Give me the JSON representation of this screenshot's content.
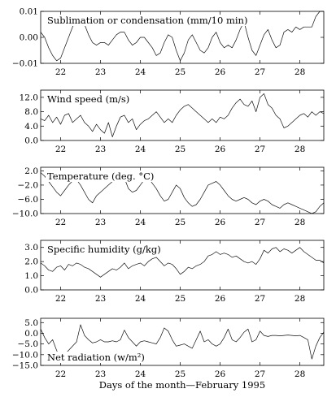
{
  "xlabel": "Days of the month—February 1995",
  "chart_data": [
    {
      "type": "line",
      "title": "Sublimation or condensation (mm/10 min)",
      "xlim": [
        21.5,
        28.6
      ],
      "ylim": [
        -0.01,
        0.01
      ],
      "xticks": [
        "22",
        "23",
        "24",
        "25",
        "26",
        "27",
        "28"
      ],
      "yticks": [
        {
          "v": 0.01,
          "label": "0.01"
        },
        {
          "v": 0.0,
          "label": "0.00"
        },
        {
          "v": -0.01,
          "label": "−0.01"
        }
      ],
      "x": [
        21.5,
        21.6,
        21.7,
        21.8,
        21.9,
        22.0,
        22.1,
        22.2,
        22.3,
        22.4,
        22.5,
        22.6,
        22.7,
        22.8,
        22.9,
        23.0,
        23.1,
        23.2,
        23.3,
        23.4,
        23.5,
        23.6,
        23.7,
        23.8,
        23.9,
        24.0,
        24.1,
        24.2,
        24.3,
        24.4,
        24.5,
        24.6,
        24.7,
        24.8,
        24.9,
        25.0,
        25.1,
        25.2,
        25.3,
        25.4,
        25.5,
        25.6,
        25.7,
        25.8,
        25.9,
        26.0,
        26.1,
        26.2,
        26.3,
        26.4,
        26.5,
        26.6,
        26.7,
        26.8,
        26.9,
        27.0,
        27.1,
        27.2,
        27.3,
        27.4,
        27.5,
        27.6,
        27.7,
        27.8,
        27.9,
        28.0,
        28.1,
        28.2,
        28.3,
        28.4,
        28.5,
        28.6
      ],
      "values": [
        0.002,
        0.0,
        -0.004,
        -0.007,
        -0.009,
        -0.008,
        -0.004,
        0.0,
        0.004,
        0.007,
        0.008,
        0.005,
        0.001,
        -0.002,
        -0.003,
        -0.002,
        -0.002,
        -0.003,
        -0.001,
        0.001,
        0.002,
        0.002,
        -0.001,
        -0.003,
        -0.002,
        0.0,
        0.0,
        -0.002,
        -0.004,
        -0.007,
        -0.006,
        -0.002,
        0.001,
        0.0,
        -0.005,
        -0.009,
        -0.006,
        -0.001,
        0.001,
        -0.002,
        -0.005,
        -0.006,
        -0.004,
        0.0,
        0.002,
        -0.002,
        -0.004,
        -0.003,
        -0.004,
        -0.001,
        0.003,
        0.006,
        0.0,
        -0.005,
        -0.007,
        -0.003,
        0.001,
        0.003,
        -0.001,
        -0.004,
        -0.003,
        0.002,
        0.003,
        0.002,
        0.004,
        0.003,
        0.004,
        0.004,
        0.004,
        0.008,
        0.01,
        0.01
      ]
    },
    {
      "type": "line",
      "title": "Wind speed (m/s)",
      "xlim": [
        21.5,
        28.6
      ],
      "ylim": [
        0.0,
        14.0
      ],
      "xticks": [
        "22",
        "23",
        "24",
        "25",
        "26",
        "27",
        "28"
      ],
      "yticks": [
        {
          "v": 12.0,
          "label": "12.0"
        },
        {
          "v": 8.0,
          "label": "8.0"
        },
        {
          "v": 4.0,
          "label": "4.0"
        },
        {
          "v": 0.0,
          "label": "0.0"
        }
      ],
      "x": [
        21.5,
        21.6,
        21.7,
        21.8,
        21.9,
        22.0,
        22.1,
        22.2,
        22.3,
        22.4,
        22.5,
        22.6,
        22.7,
        22.8,
        22.9,
        23.0,
        23.1,
        23.2,
        23.3,
        23.4,
        23.5,
        23.6,
        23.7,
        23.8,
        23.9,
        24.0,
        24.1,
        24.2,
        24.3,
        24.4,
        24.5,
        24.6,
        24.7,
        24.8,
        24.9,
        25.0,
        25.1,
        25.2,
        25.3,
        25.4,
        25.5,
        25.6,
        25.7,
        25.8,
        25.9,
        26.0,
        26.1,
        26.2,
        26.3,
        26.4,
        26.5,
        26.6,
        26.7,
        26.8,
        26.9,
        27.0,
        27.1,
        27.2,
        27.3,
        27.4,
        27.5,
        27.6,
        27.7,
        27.8,
        27.9,
        28.0,
        28.1,
        28.2,
        28.3,
        28.4,
        28.5,
        28.6
      ],
      "values": [
        6.0,
        5.5,
        7.0,
        5.0,
        6.5,
        4.5,
        7.0,
        7.5,
        5.0,
        6.0,
        7.0,
        5.0,
        4.0,
        2.5,
        4.5,
        3.0,
        2.0,
        5.0,
        1.0,
        4.0,
        6.5,
        7.0,
        5.0,
        6.0,
        3.0,
        4.5,
        5.5,
        6.0,
        7.0,
        8.0,
        6.5,
        5.0,
        6.0,
        5.0,
        7.0,
        8.5,
        9.5,
        10.0,
        9.0,
        8.0,
        7.0,
        6.0,
        5.0,
        6.0,
        5.0,
        6.5,
        6.0,
        7.0,
        9.0,
        10.5,
        11.5,
        10.0,
        9.5,
        11.0,
        8.0,
        12.0,
        13.0,
        10.0,
        9.0,
        7.0,
        6.0,
        3.5,
        4.0,
        5.0,
        6.0,
        7.0,
        7.5,
        6.5,
        8.0,
        7.0,
        8.0,
        7.5
      ]
    },
    {
      "type": "line",
      "title": "Temperature (deg. °C)",
      "xlim": [
        21.5,
        28.6
      ],
      "ylim": [
        -10.0,
        3.0
      ],
      "xticks": [
        "22",
        "23",
        "24",
        "25",
        "26",
        "27",
        "28"
      ],
      "yticks": [
        {
          "v": 2.0,
          "label": "2.0"
        },
        {
          "v": -2.0,
          "label": "−2.0"
        },
        {
          "v": -6.0,
          "label": "−6.0"
        },
        {
          "v": -10.0,
          "label": "−10.0"
        }
      ],
      "x": [
        21.5,
        21.6,
        21.7,
        21.8,
        21.9,
        22.0,
        22.1,
        22.2,
        22.3,
        22.4,
        22.5,
        22.6,
        22.7,
        22.8,
        22.9,
        23.0,
        23.1,
        23.2,
        23.3,
        23.4,
        23.5,
        23.6,
        23.7,
        23.8,
        23.9,
        24.0,
        24.1,
        24.2,
        24.3,
        24.4,
        24.5,
        24.6,
        24.7,
        24.8,
        24.9,
        25.0,
        25.1,
        25.2,
        25.3,
        25.4,
        25.5,
        25.6,
        25.7,
        25.8,
        25.9,
        26.0,
        26.1,
        26.2,
        26.3,
        26.4,
        26.5,
        26.6,
        26.7,
        26.8,
        26.9,
        27.0,
        27.1,
        27.2,
        27.3,
        27.4,
        27.5,
        27.6,
        27.7,
        27.8,
        27.9,
        28.0,
        28.1,
        28.2,
        28.3,
        28.4,
        28.5,
        28.6
      ],
      "values": [
        1.5,
        0.5,
        -1.0,
        -2.5,
        -4.0,
        -5.0,
        -3.5,
        -2.0,
        -0.8,
        -0.5,
        -2.0,
        -4.0,
        -6.0,
        -7.0,
        -5.0,
        -4.0,
        -3.0,
        -2.0,
        -1.0,
        0.5,
        1.8,
        0.0,
        -3.0,
        -4.0,
        -3.5,
        -2.0,
        -0.5,
        0.0,
        -1.5,
        -3.0,
        -5.0,
        -6.5,
        -6.0,
        -4.0,
        -2.0,
        -3.0,
        -5.5,
        -7.0,
        -8.0,
        -7.5,
        -6.0,
        -4.0,
        -2.0,
        -1.5,
        -1.0,
        -2.0,
        -3.5,
        -5.0,
        -6.0,
        -6.5,
        -6.0,
        -5.5,
        -6.0,
        -7.0,
        -7.5,
        -6.5,
        -6.0,
        -6.5,
        -7.5,
        -8.0,
        -8.5,
        -7.5,
        -7.0,
        -7.5,
        -8.0,
        -8.5,
        -9.0,
        -9.5,
        -10.0,
        -9.5,
        -8.0,
        -7.0
      ]
    },
    {
      "type": "line",
      "title": "Specific humidity (g/kg)",
      "xlim": [
        21.5,
        28.6
      ],
      "ylim": [
        0.0,
        3.5
      ],
      "xticks": [
        "22",
        "23",
        "24",
        "25",
        "26",
        "27",
        "28"
      ],
      "yticks": [
        {
          "v": 3.0,
          "label": "3.0"
        },
        {
          "v": 2.0,
          "label": "2.0"
        },
        {
          "v": 1.0,
          "label": "1.0"
        },
        {
          "v": 0.0,
          "label": "0.0"
        }
      ],
      "x": [
        21.5,
        21.6,
        21.7,
        21.8,
        21.9,
        22.0,
        22.1,
        22.2,
        22.3,
        22.4,
        22.5,
        22.6,
        22.7,
        22.8,
        22.9,
        23.0,
        23.1,
        23.2,
        23.3,
        23.4,
        23.5,
        23.6,
        23.7,
        23.8,
        23.9,
        24.0,
        24.1,
        24.2,
        24.3,
        24.4,
        24.5,
        24.6,
        24.7,
        24.8,
        24.9,
        25.0,
        25.1,
        25.2,
        25.3,
        25.4,
        25.5,
        25.6,
        25.7,
        25.8,
        25.9,
        26.0,
        26.1,
        26.2,
        26.3,
        26.4,
        26.5,
        26.6,
        26.7,
        26.8,
        26.9,
        27.0,
        27.1,
        27.2,
        27.3,
        27.4,
        27.5,
        27.6,
        27.7,
        27.8,
        27.9,
        28.0,
        28.1,
        28.2,
        28.3,
        28.4,
        28.5,
        28.6
      ],
      "values": [
        1.9,
        1.7,
        1.4,
        1.3,
        1.6,
        1.7,
        1.4,
        1.8,
        1.7,
        1.9,
        1.8,
        1.6,
        1.5,
        1.3,
        1.1,
        0.9,
        1.1,
        1.3,
        1.5,
        1.4,
        1.6,
        1.9,
        1.5,
        1.7,
        1.8,
        1.9,
        1.7,
        2.0,
        2.2,
        2.3,
        2.0,
        1.7,
        1.9,
        1.8,
        1.5,
        1.1,
        1.3,
        1.6,
        1.5,
        1.7,
        1.8,
        2.0,
        2.4,
        2.5,
        2.7,
        2.5,
        2.6,
        2.5,
        2.3,
        2.4,
        2.2,
        2.0,
        1.9,
        2.0,
        1.8,
        2.2,
        2.8,
        2.6,
        2.9,
        3.0,
        2.7,
        2.9,
        2.8,
        2.6,
        2.8,
        3.0,
        2.7,
        2.5,
        2.3,
        2.1,
        2.1,
        1.9
      ]
    },
    {
      "type": "line",
      "title": "Net radiation (w/m²)",
      "xlim": [
        21.5,
        28.6
      ],
      "ylim": [
        -15.0,
        7.0
      ],
      "xticks": [
        "22",
        "23",
        "24",
        "25",
        "26",
        "27",
        "28"
      ],
      "yticks": [
        {
          "v": 5.0,
          "label": "5.0"
        },
        {
          "v": 0.0,
          "label": "0.0"
        },
        {
          "v": -5.0,
          "label": "−5.0"
        },
        {
          "v": -10.0,
          "label": "−10.0"
        },
        {
          "v": -15.0,
          "label": "−15.0"
        }
      ],
      "x": [
        21.5,
        21.6,
        21.7,
        21.8,
        21.9,
        22.0,
        22.1,
        22.2,
        22.3,
        22.4,
        22.5,
        22.6,
        22.7,
        22.8,
        22.9,
        23.0,
        23.1,
        23.2,
        23.3,
        23.4,
        23.5,
        23.6,
        23.7,
        23.8,
        23.9,
        24.0,
        24.1,
        24.2,
        24.3,
        24.4,
        24.5,
        24.6,
        24.7,
        24.8,
        24.9,
        25.0,
        25.1,
        25.2,
        25.3,
        25.4,
        25.5,
        25.6,
        25.7,
        25.8,
        25.9,
        26.0,
        26.1,
        26.2,
        26.3,
        26.4,
        26.5,
        26.6,
        26.7,
        26.8,
        26.9,
        27.0,
        27.1,
        27.2,
        27.3,
        27.4,
        27.5,
        27.6,
        27.7,
        27.8,
        27.9,
        28.0,
        28.1,
        28.2,
        28.3,
        28.4,
        28.5,
        28.6
      ],
      "values": [
        2.0,
        -2.0,
        -5.0,
        -3.0,
        -8.0,
        -12.0,
        -10.0,
        -8.0,
        -6.0,
        -4.0,
        4.0,
        -1.0,
        -3.0,
        -4.5,
        -4.0,
        -3.0,
        -4.0,
        -4.0,
        -3.5,
        -4.0,
        -3.0,
        1.5,
        -2.0,
        -4.0,
        -6.0,
        -4.0,
        -3.5,
        -4.0,
        -4.5,
        -5.0,
        -2.0,
        2.5,
        1.0,
        -3.0,
        -6.0,
        -5.5,
        -5.0,
        -6.0,
        -7.0,
        -3.0,
        1.0,
        -4.0,
        -3.0,
        -5.0,
        -6.0,
        -5.0,
        -2.0,
        2.0,
        -3.0,
        -4.0,
        -2.0,
        0.5,
        2.0,
        -4.0,
        -3.0,
        1.0,
        -1.0,
        -1.5,
        -1.0,
        -1.0,
        -1.2,
        -1.0,
        -0.8,
        -1.0,
        -1.2,
        -1.0,
        -2.0,
        -3.0,
        -12.0,
        -6.0,
        -2.0,
        0.5
      ]
    }
  ]
}
